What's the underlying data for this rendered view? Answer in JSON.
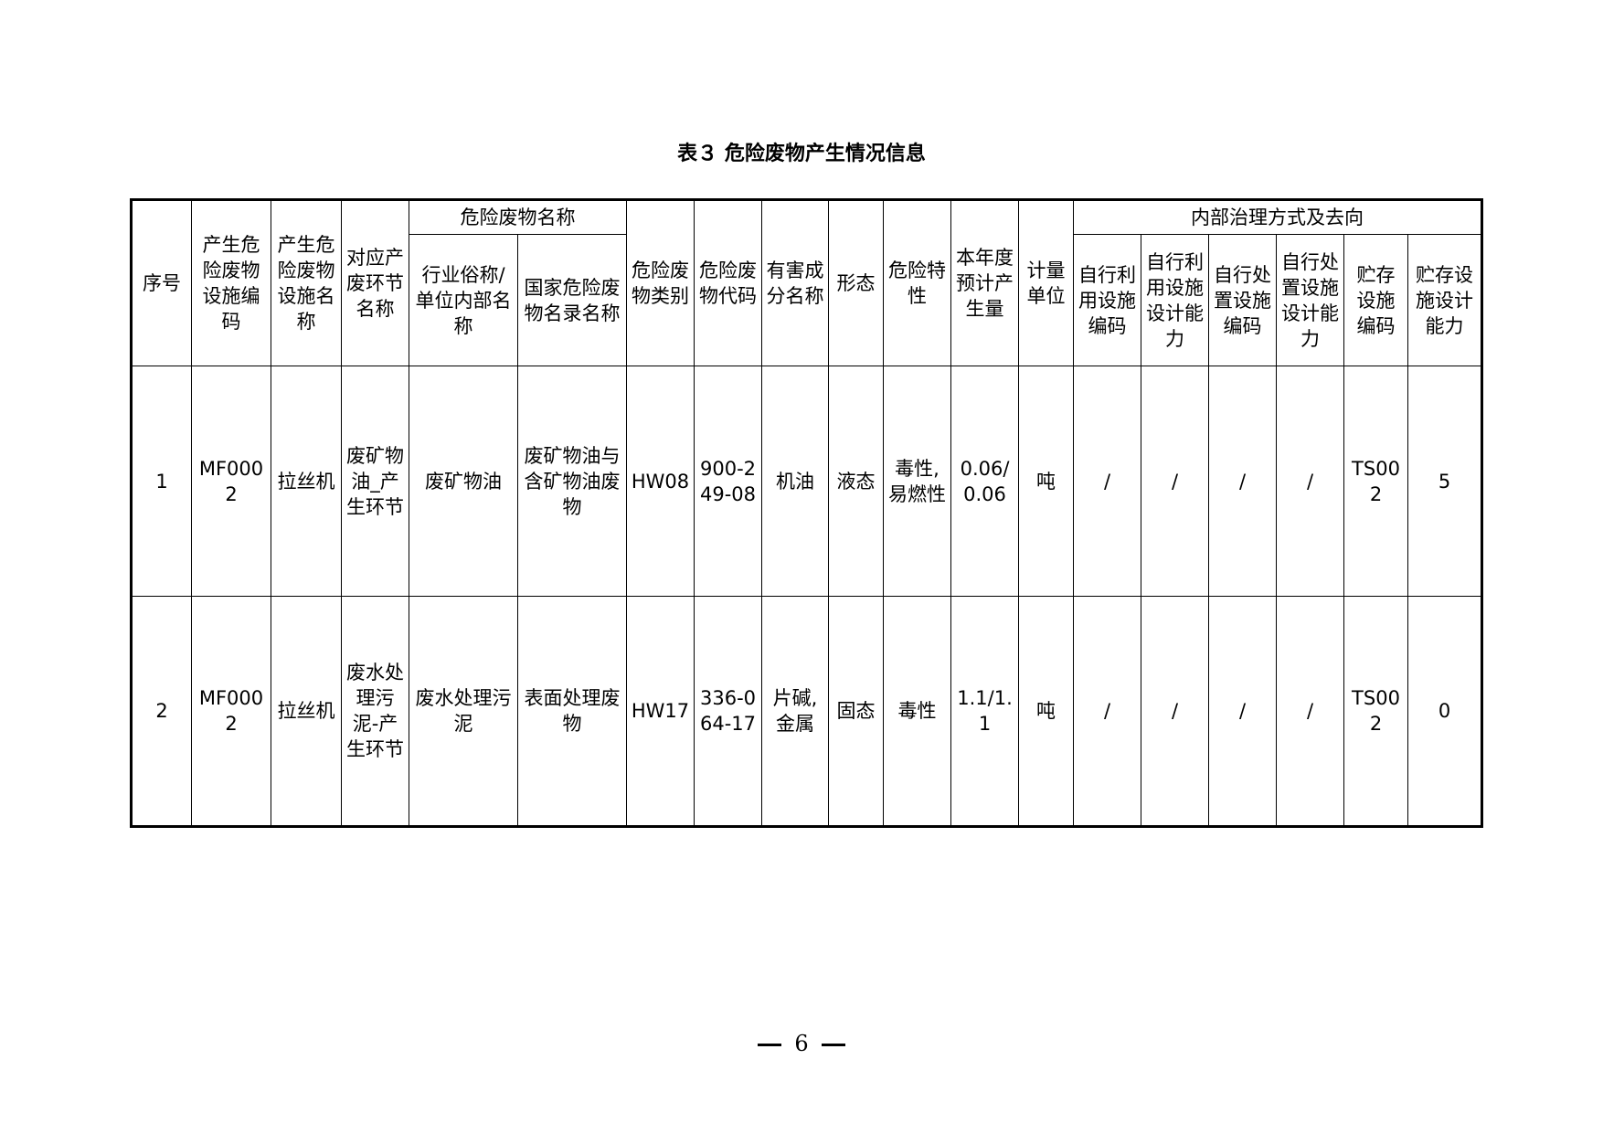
{
  "title": "表３ 危险废物产生情况信息",
  "headers": {
    "seq": "序号",
    "facility_code": "产生危险废物设施编码",
    "facility_name": "产生危险废物设施名称",
    "process": "对应产废环节名称",
    "waste_name_group": "危险废物名称",
    "industry_name": "行业俗称/单位内部名称",
    "national_name": "国家危险废物名录名称",
    "category": "危险废物类别",
    "code": "危险废物代码",
    "harmful": "有害成分名称",
    "form": "形态",
    "property": "危险特性",
    "amount": "本年度预计产生量",
    "unit": "计量单位",
    "internal_group": "内部治理方式及去向",
    "reuse_code": "自行利用设施编码",
    "reuse_cap": "自行利用设施设计能力",
    "dispose_code": "自行处置设施编码",
    "dispose_cap": "自行处置设施设计能力",
    "storage_code": "贮存设施编码",
    "storage_cap": "贮存设施设计能力"
  },
  "rows": [
    [
      "1",
      "MF0002",
      "拉丝机",
      "废矿物油_产生环节",
      "废矿物油",
      "废矿物油与含矿物油废物",
      "HW08",
      "900-249-08",
      "机油",
      "液态",
      "毒性,易燃性",
      "0.06/0.06",
      "吨",
      "/",
      "/",
      "/",
      "/",
      "TS002",
      "5"
    ],
    [
      "2",
      "MF0002",
      "拉丝机",
      "废水处理污泥-产生环节",
      "废水处理污泥",
      "表面处理废物",
      "HW17",
      "336-064-17",
      "片碱,金属",
      "固态",
      "毒性",
      "1.1/1.1",
      "吨",
      "/",
      "/",
      "/",
      "/",
      "TS002",
      "0"
    ]
  ],
  "page_number": "6"
}
